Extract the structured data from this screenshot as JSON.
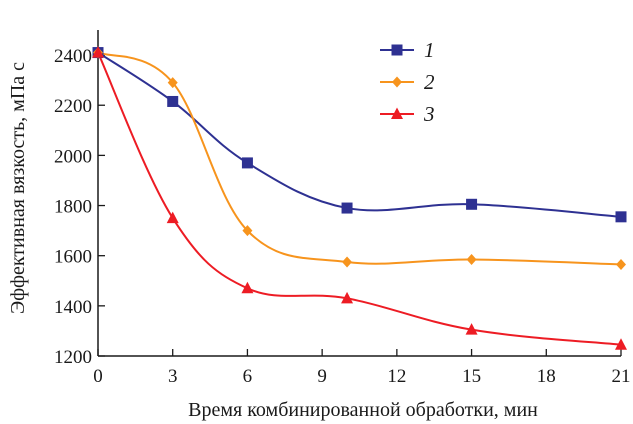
{
  "chart_data": {
    "type": "line",
    "xlabel": "Время комбинированной обработки, мин",
    "ylabel": "Эффективная вязкость, мПа с",
    "xlim": [
      0,
      21
    ],
    "ylim": [
      1200,
      2500
    ],
    "xticks": [
      0,
      3,
      6,
      9,
      12,
      15,
      18,
      21
    ],
    "yticks": [
      1200,
      1400,
      1600,
      1800,
      2000,
      2200,
      2400
    ],
    "grid": false,
    "legend_position": "top-right",
    "series": [
      {
        "name": "1",
        "color": "#2e3192",
        "marker": "square",
        "x": [
          0,
          3,
          6,
          10,
          15,
          21
        ],
        "y": [
          2410,
          2215,
          1970,
          1790,
          1805,
          1755
        ]
      },
      {
        "name": "2",
        "color": "#f7941d",
        "marker": "diamond",
        "x": [
          0,
          3,
          6,
          10,
          15,
          21
        ],
        "y": [
          2410,
          2290,
          1700,
          1575,
          1585,
          1565
        ]
      },
      {
        "name": "3",
        "color": "#ed1c24",
        "marker": "triangle",
        "x": [
          0,
          3,
          6,
          10,
          15,
          21
        ],
        "y": [
          2410,
          1750,
          1470,
          1430,
          1305,
          1245
        ]
      }
    ]
  }
}
